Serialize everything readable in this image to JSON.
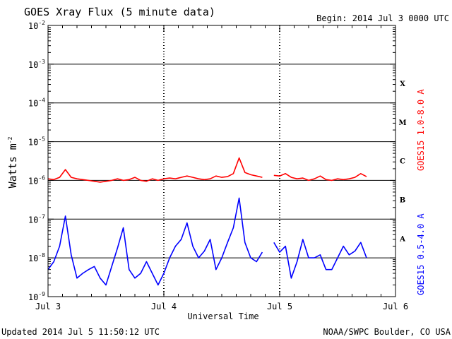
{
  "header": {
    "title": "GOES Xray Flux (5 minute data)",
    "begin": "Begin:  2014 Jul 3 0000 UTC"
  },
  "footer": {
    "updated": "Updated 2014 Jul  5 11:50:12 UTC",
    "credit": "NOAA/SWPC Boulder, CO USA"
  },
  "chart_data": {
    "type": "line",
    "title": "GOES Xray Flux (5 minute data)",
    "xlabel": "Universal Time",
    "ylabel": "Watts m-2",
    "ylabel_text": "Watts m",
    "ylabel_sup": "-2",
    "yscale": "log",
    "ylim": [
      1e-09,
      0.01
    ],
    "xlim": [
      0,
      3
    ],
    "x_unit": "days since Jul 3 0000 UTC",
    "x_ticks": [
      {
        "value": 0,
        "label": "Jul 3"
      },
      {
        "value": 1,
        "label": "Jul 4"
      },
      {
        "value": 2,
        "label": "Jul 5"
      },
      {
        "value": 3,
        "label": "Jul 6"
      }
    ],
    "y_ticks": [
      {
        "value": 0.01,
        "base": "10",
        "exp": "-2"
      },
      {
        "value": 0.001,
        "base": "10",
        "exp": "-3"
      },
      {
        "value": 0.0001,
        "base": "10",
        "exp": "-4"
      },
      {
        "value": 1e-05,
        "base": "10",
        "exp": "-5"
      },
      {
        "value": 1e-06,
        "base": "10",
        "exp": "-6"
      },
      {
        "value": 1e-07,
        "base": "10",
        "exp": "-7"
      },
      {
        "value": 1e-08,
        "base": "10",
        "exp": "-8"
      },
      {
        "value": 1e-09,
        "base": "10",
        "exp": "-9"
      }
    ],
    "flare_classes": [
      {
        "label": "X",
        "value": 0.00032
      },
      {
        "label": "M",
        "value": 3.2e-05
      },
      {
        "label": "C",
        "value": 3.2e-06
      },
      {
        "label": "B",
        "value": 3.2e-07
      },
      {
        "label": "A",
        "value": 3.2e-08
      }
    ],
    "grid": "horizontal lines at each decade",
    "series": [
      {
        "name": "GOES15 1.0-8.0 A",
        "color": "#ff0000",
        "segments": [
          {
            "x": [
              0.0,
              0.05,
              0.1,
              0.15,
              0.2,
              0.25,
              0.3,
              0.35,
              0.4,
              0.45,
              0.5,
              0.55,
              0.6,
              0.65,
              0.7,
              0.75,
              0.8,
              0.85,
              0.9,
              0.95,
              1.0,
              1.05,
              1.1,
              1.15,
              1.2,
              1.25,
              1.3,
              1.35,
              1.4,
              1.45,
              1.5,
              1.55,
              1.6,
              1.65,
              1.7,
              1.75,
              1.8,
              1.85
            ],
            "y": [
              1.1e-06,
              1.05e-06,
              1.2e-06,
              1.9e-06,
              1.2e-06,
              1.1e-06,
              1.05e-06,
              1e-06,
              9.5e-07,
              9e-07,
              9.5e-07,
              1e-06,
              1.1e-06,
              1e-06,
              1.05e-06,
              1.2e-06,
              1e-06,
              9.5e-07,
              1.1e-06,
              1e-06,
              1.1e-06,
              1.15e-06,
              1.1e-06,
              1.2e-06,
              1.3e-06,
              1.2e-06,
              1.1e-06,
              1.05e-06,
              1.1e-06,
              1.3e-06,
              1.2e-06,
              1.25e-06,
              1.5e-06,
              3.8e-06,
              1.6e-06,
              1.4e-06,
              1.3e-06,
              1.2e-06
            ]
          },
          {
            "x": [
              1.95,
              2.0,
              2.05,
              2.1,
              2.15,
              2.2,
              2.25,
              2.3,
              2.35,
              2.4,
              2.45,
              2.5,
              2.55,
              2.6,
              2.65,
              2.7,
              2.75
            ],
            "y": [
              1.35e-06,
              1.3e-06,
              1.5e-06,
              1.2e-06,
              1.1e-06,
              1.15e-06,
              1e-06,
              1.1e-06,
              1.3e-06,
              1.05e-06,
              1e-06,
              1.1e-06,
              1.05e-06,
              1.1e-06,
              1.2e-06,
              1.5e-06,
              1.25e-06
            ]
          }
        ]
      },
      {
        "name": "GOES15 0.5-4.0 A",
        "color": "#0000ff",
        "segments": [
          {
            "x": [
              0.0,
              0.05,
              0.1,
              0.15,
              0.2,
              0.25,
              0.3,
              0.35,
              0.4,
              0.45,
              0.5,
              0.55,
              0.6,
              0.65,
              0.7,
              0.75,
              0.8,
              0.85,
              0.9,
              0.95,
              1.0,
              1.05,
              1.1,
              1.15,
              1.2,
              1.25,
              1.3,
              1.35,
              1.4,
              1.45,
              1.5,
              1.55,
              1.6,
              1.65,
              1.7,
              1.75,
              1.8,
              1.85
            ],
            "y": [
              5e-09,
              8e-09,
              2e-08,
              1.2e-07,
              1.2e-08,
              3e-09,
              4e-09,
              5e-09,
              6e-09,
              3e-09,
              2e-09,
              6e-09,
              1.8e-08,
              6e-08,
              5e-09,
              3e-09,
              4e-09,
              8e-09,
              4e-09,
              2e-09,
              4e-09,
              1e-08,
              2e-08,
              3e-08,
              8e-08,
              2e-08,
              1e-08,
              1.5e-08,
              3e-08,
              5e-09,
              1e-08,
              2.5e-08,
              6e-08,
              3.5e-07,
              2.5e-08,
              1e-08,
              8e-09,
              1.4e-08
            ]
          },
          {
            "x": [
              1.95,
              2.0,
              2.05,
              2.1,
              2.15,
              2.2,
              2.25,
              2.3,
              2.35,
              2.4,
              2.45,
              2.5,
              2.55,
              2.6,
              2.65,
              2.7,
              2.75
            ],
            "y": [
              2.5e-08,
              1.4e-08,
              2e-08,
              3e-09,
              8e-09,
              3e-08,
              1e-08,
              1e-08,
              1.2e-08,
              5e-09,
              5e-09,
              1e-08,
              2e-08,
              1.2e-08,
              1.5e-08,
              2.5e-08,
              1e-08
            ]
          }
        ]
      }
    ]
  }
}
